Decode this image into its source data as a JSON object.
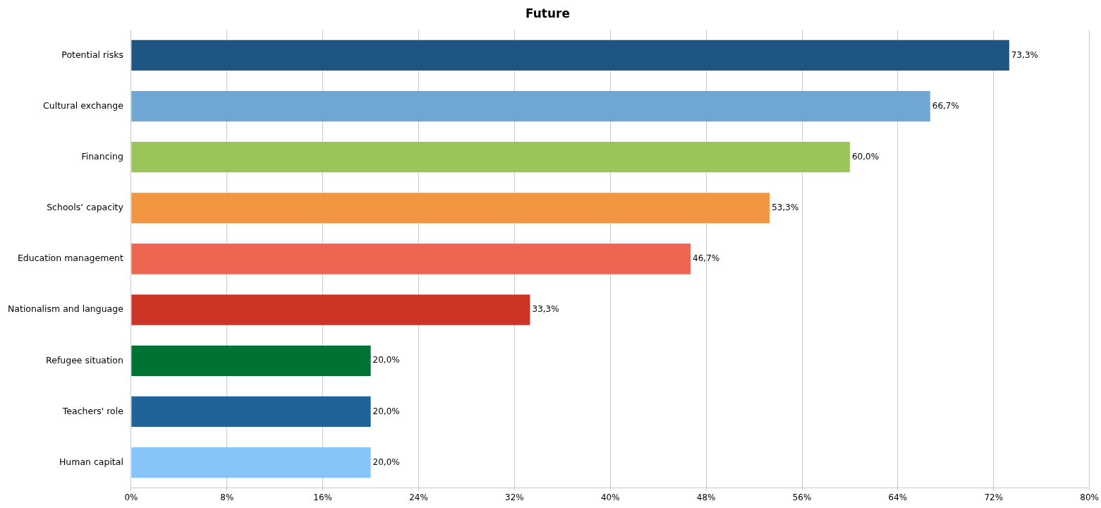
{
  "chart_data": {
    "type": "bar",
    "orientation": "horizontal",
    "title": "Future",
    "categories": [
      "Potential risks",
      "Cultural exchange",
      "Financing",
      "Schools‘ capacity",
      "Education management",
      "Nationalism and language",
      "Refugee situation",
      "Teachers' role",
      "Human capital"
    ],
    "values": [
      73.3,
      66.7,
      60.0,
      53.3,
      46.7,
      33.3,
      20.0,
      20.0,
      20.0
    ],
    "colors": [
      "#1f5582",
      "#6fa6d4",
      "#9bc55a",
      "#f39641",
      "#ee6651",
      "#cc3526",
      "#007233",
      "#206399",
      "#85c5fa"
    ],
    "value_labels": [
      "73,3%",
      "66,7%",
      "60,0%",
      "53,3%",
      "46,7%",
      "33,3%",
      "20,0%",
      "20,0%",
      "20,0%"
    ],
    "xlim": [
      0,
      80
    ],
    "xticks": [
      {
        "value": 0,
        "label": "0%"
      },
      {
        "value": 8,
        "label": "8%"
      },
      {
        "value": 16,
        "label": "16%"
      },
      {
        "value": 24,
        "label": "24%"
      },
      {
        "value": 32,
        "label": "32%"
      },
      {
        "value": 40,
        "label": "40%"
      },
      {
        "value": 48,
        "label": "48%"
      },
      {
        "value": 56,
        "label": "56%"
      },
      {
        "value": 64,
        "label": "64%"
      },
      {
        "value": 72,
        "label": "72%"
      },
      {
        "value": 80,
        "label": "80%"
      }
    ],
    "grid": "x",
    "legend": false
  }
}
